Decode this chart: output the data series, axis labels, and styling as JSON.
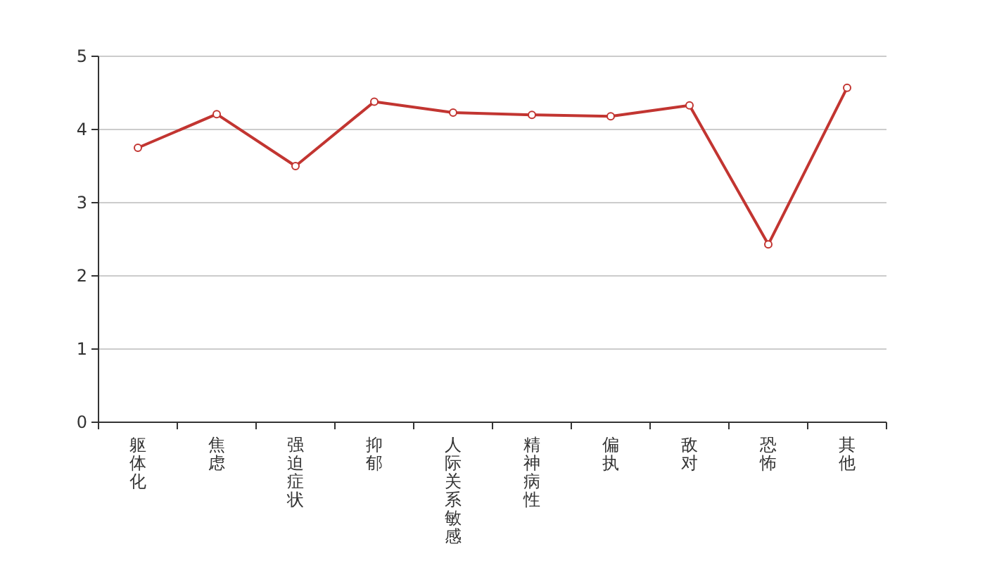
{
  "chart_data": {
    "type": "line",
    "categories": [
      "躯体化",
      "焦虑",
      "强迫症状",
      "抑郁",
      "人际关系敏感",
      "精神病性",
      "偏执",
      "敌对",
      "恐怖",
      "其他"
    ],
    "series": [
      {
        "color": "#c23531",
        "values": [
          3.75,
          4.21,
          3.5,
          4.38,
          4.23,
          4.2,
          4.18,
          4.33,
          2.43,
          4.57
        ]
      }
    ],
    "ylim": [
      0,
      5
    ],
    "yticks": [
      0,
      1,
      2,
      3,
      4,
      5
    ],
    "grid": "y",
    "marker": "circle",
    "line_style": "solid"
  }
}
